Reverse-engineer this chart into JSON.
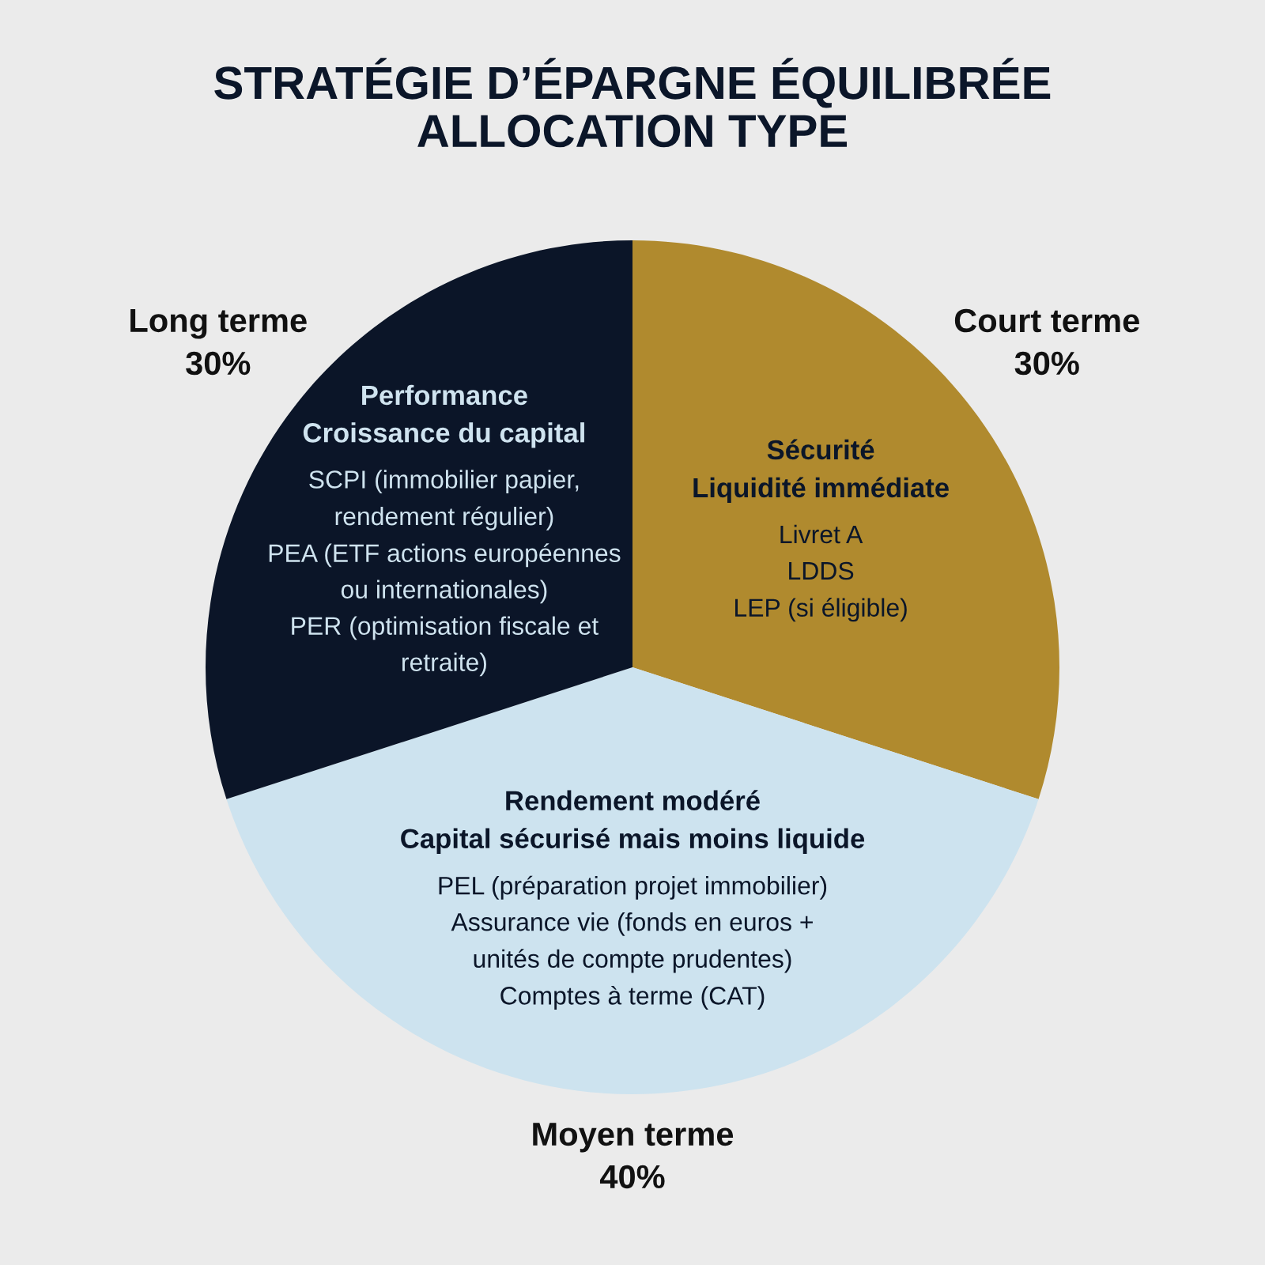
{
  "chart_data": {
    "type": "pie",
    "title": "STRATÉGIE D’ÉPARGNE ÉQUILIBRÉE\nALLOCATION TYPE",
    "categories": [
      "Court terme",
      "Moyen terme",
      "Long terme"
    ],
    "values": [
      30,
      40,
      30
    ],
    "colors": [
      "#b08a2e",
      "#cde3ef",
      "#0b1528"
    ],
    "value_labels": [
      "30%",
      "40%",
      "30%"
    ],
    "annotations": [
      "Sécurité\nLiquidité immédiate",
      "Livret A\nLDDS\nLEP (si éligible)",
      "Rendement modéré\nCapital sécurisé mais moins liquide",
      "PEL (préparation projet immobilier)\nAssurance vie (fonds en euros +\nunités de compte prudentes)\nComptes à terme (CAT)",
      "Performance\nCroissance du capital",
      "SCPI (immobilier papier,\nrendement régulier)\nPEA (ETF actions européennes\nou internationales)\nPER (optimisation fiscale et\nretraite)"
    ]
  }
}
